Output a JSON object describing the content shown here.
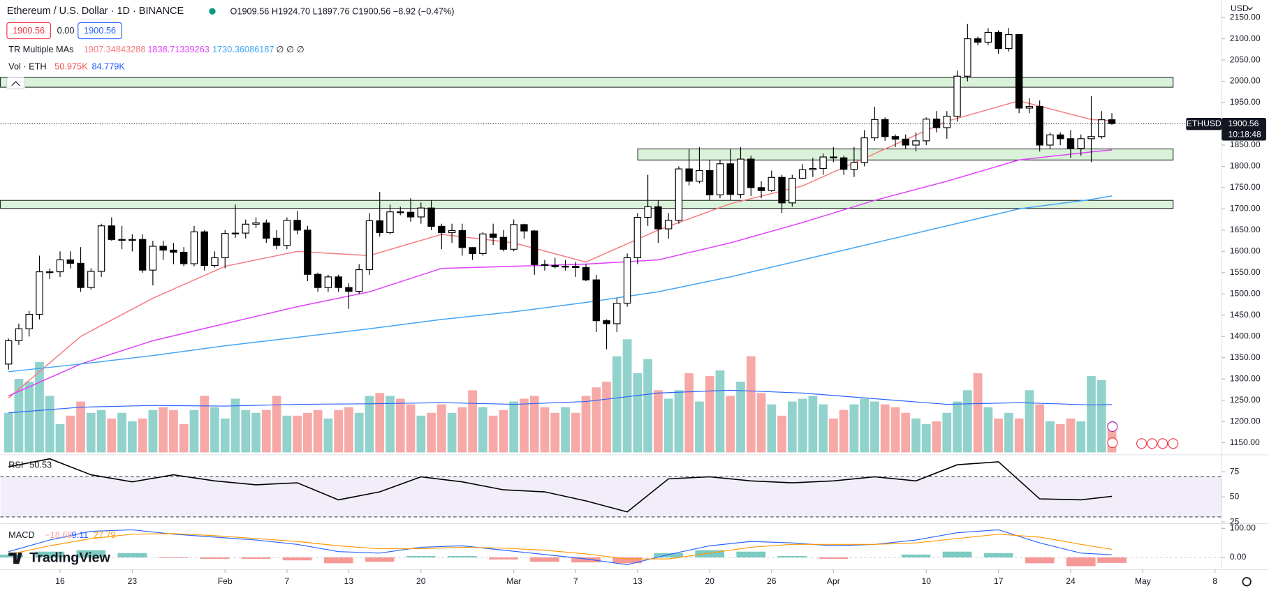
{
  "header": {
    "symbol": "Ethereum / U.S. Dollar · 1D · BINANCE",
    "ohlc": "O1909.56 H1924.70 L1897.76 C1900.56 −8.92 (−0.47%)",
    "sell": "1900.56",
    "spread": "0.00",
    "buy": "1900.56"
  },
  "legend": {
    "ma_title": "TR Multiple MAs",
    "ma_values": [
      "1907.34843288",
      "1838.71339263",
      "1730.36086187"
    ],
    "ma_extra": "∅ ∅ ∅",
    "vol_title": "Vol · ETH",
    "vol_values": [
      "50.975K",
      "84.779K"
    ],
    "rsi_title": "RSI",
    "rsi_value": "50.53",
    "macd_title": "MACD",
    "macd_values": [
      "−18.68",
      "9.11",
      "27.79"
    ]
  },
  "price_tag": {
    "symbol": "ETHUSD",
    "price": "1900.56",
    "countdown": "10:18:48"
  },
  "currency": "USD",
  "brand": "TradingView",
  "chart_data": {
    "type": "candlestick",
    "candles": [
      [
        1335,
        1395,
        1322,
        1390
      ],
      [
        1390,
        1430,
        1380,
        1418
      ],
      [
        1418,
        1460,
        1400,
        1452
      ],
      [
        1452,
        1590,
        1440,
        1552
      ],
      [
        1552,
        1560,
        1535,
        1552
      ],
      [
        1552,
        1600,
        1540,
        1580
      ],
      [
        1580,
        1600,
        1560,
        1572
      ],
      [
        1572,
        1610,
        1505,
        1515
      ],
      [
        1515,
        1560,
        1510,
        1553
      ],
      [
        1553,
        1665,
        1540,
        1660
      ],
      [
        1660,
        1680,
        1625,
        1628
      ],
      [
        1628,
        1660,
        1605,
        1628
      ],
      [
        1628,
        1640,
        1600,
        1628
      ],
      [
        1628,
        1640,
        1550,
        1556
      ],
      [
        1556,
        1625,
        1520,
        1612
      ],
      [
        1612,
        1625,
        1580,
        1603
      ],
      [
        1603,
        1620,
        1570,
        1598
      ],
      [
        1598,
        1610,
        1565,
        1571
      ],
      [
        1571,
        1660,
        1565,
        1646
      ],
      [
        1646,
        1650,
        1555,
        1567
      ],
      [
        1567,
        1600,
        1562,
        1585
      ],
      [
        1585,
        1650,
        1560,
        1642
      ],
      [
        1642,
        1710,
        1632,
        1643
      ],
      [
        1643,
        1675,
        1630,
        1664
      ],
      [
        1664,
        1680,
        1655,
        1667
      ],
      [
        1667,
        1675,
        1620,
        1631
      ],
      [
        1631,
        1650,
        1605,
        1614
      ],
      [
        1614,
        1680,
        1605,
        1673
      ],
      [
        1673,
        1695,
        1640,
        1650
      ],
      [
        1650,
        1660,
        1530,
        1546
      ],
      [
        1546,
        1550,
        1505,
        1515
      ],
      [
        1515,
        1545,
        1505,
        1540
      ],
      [
        1540,
        1545,
        1505,
        1515
      ],
      [
        1515,
        1525,
        1465,
        1506
      ],
      [
        1506,
        1570,
        1500,
        1557
      ],
      [
        1557,
        1690,
        1545,
        1672
      ],
      [
        1672,
        1740,
        1635,
        1644
      ],
      [
        1644,
        1710,
        1640,
        1693
      ],
      [
        1693,
        1705,
        1685,
        1692
      ],
      [
        1692,
        1725,
        1670,
        1681
      ],
      [
        1681,
        1715,
        1665,
        1702
      ],
      [
        1702,
        1720,
        1650,
        1659
      ],
      [
        1659,
        1665,
        1605,
        1644
      ],
      [
        1644,
        1665,
        1620,
        1649
      ],
      [
        1649,
        1665,
        1590,
        1609
      ],
      [
        1609,
        1610,
        1580,
        1595
      ],
      [
        1595,
        1645,
        1590,
        1641
      ],
      [
        1641,
        1665,
        1615,
        1633
      ],
      [
        1633,
        1650,
        1600,
        1605
      ],
      [
        1605,
        1675,
        1600,
        1663
      ],
      [
        1663,
        1665,
        1630,
        1648
      ],
      [
        1648,
        1650,
        1545,
        1569
      ],
      [
        1569,
        1580,
        1555,
        1567
      ],
      [
        1567,
        1585,
        1560,
        1564
      ],
      [
        1564,
        1580,
        1555,
        1565
      ],
      [
        1565,
        1575,
        1540,
        1562
      ],
      [
        1562,
        1570,
        1530,
        1533
      ],
      [
        1533,
        1545,
        1410,
        1437
      ],
      [
        1437,
        1440,
        1370,
        1430
      ],
      [
        1430,
        1490,
        1410,
        1478
      ],
      [
        1478,
        1595,
        1470,
        1585
      ],
      [
        1585,
        1690,
        1570,
        1680
      ],
      [
        1680,
        1780,
        1660,
        1705
      ],
      [
        1705,
        1720,
        1620,
        1653
      ],
      [
        1653,
        1690,
        1630,
        1673
      ],
      [
        1673,
        1800,
        1665,
        1794
      ],
      [
        1794,
        1840,
        1755,
        1765
      ],
      [
        1765,
        1845,
        1760,
        1790
      ],
      [
        1790,
        1815,
        1720,
        1733
      ],
      [
        1733,
        1815,
        1725,
        1806
      ],
      [
        1806,
        1840,
        1720,
        1734
      ],
      [
        1734,
        1845,
        1725,
        1817
      ],
      [
        1817,
        1825,
        1730,
        1750
      ],
      [
        1750,
        1765,
        1725,
        1743
      ],
      [
        1743,
        1790,
        1740,
        1774
      ],
      [
        1774,
        1780,
        1690,
        1714
      ],
      [
        1714,
        1780,
        1705,
        1772
      ],
      [
        1772,
        1805,
        1770,
        1792
      ],
      [
        1792,
        1820,
        1775,
        1795
      ],
      [
        1795,
        1830,
        1780,
        1822
      ],
      [
        1822,
        1845,
        1810,
        1820
      ],
      [
        1820,
        1825,
        1780,
        1793
      ],
      [
        1793,
        1845,
        1775,
        1809
      ],
      [
        1809,
        1885,
        1800,
        1867
      ],
      [
        1867,
        1940,
        1860,
        1910
      ],
      [
        1910,
        1915,
        1860,
        1870
      ],
      [
        1870,
        1875,
        1845,
        1864
      ],
      [
        1864,
        1875,
        1840,
        1850
      ],
      [
        1850,
        1880,
        1835,
        1860
      ],
      [
        1860,
        1915,
        1850,
        1911
      ],
      [
        1911,
        1930,
        1880,
        1891
      ],
      [
        1891,
        1930,
        1865,
        1918
      ],
      [
        1918,
        2025,
        1905,
        2012
      ],
      [
        2012,
        2135,
        2000,
        2100
      ],
      [
        2100,
        2105,
        2085,
        2092
      ],
      [
        2092,
        2125,
        2085,
        2115
      ],
      [
        2115,
        2120,
        2065,
        2077
      ],
      [
        2077,
        2125,
        2070,
        2110
      ],
      [
        2110,
        2110,
        1925,
        1937
      ],
      [
        1937,
        1960,
        1925,
        1941
      ],
      [
        1941,
        1955,
        1835,
        1850
      ],
      [
        1850,
        1880,
        1840,
        1874
      ],
      [
        1874,
        1880,
        1850,
        1865
      ],
      [
        1865,
        1885,
        1820,
        1842
      ],
      [
        1842,
        1875,
        1825,
        1865
      ],
      [
        1865,
        1965,
        1810,
        1870
      ],
      [
        1870,
        1930,
        1865,
        1909.56
      ],
      [
        1909.56,
        1924.7,
        1897.76,
        1900.56
      ]
    ],
    "volumes": [
      70,
      130,
      125,
      160,
      100,
      50,
      65,
      90,
      70,
      75,
      60,
      70,
      55,
      60,
      75,
      80,
      75,
      50,
      75,
      100,
      80,
      60,
      95,
      75,
      70,
      75,
      100,
      65,
      65,
      70,
      75,
      60,
      75,
      80,
      70,
      100,
      105,
      100,
      95,
      85,
      65,
      70,
      85,
      70,
      80,
      110,
      80,
      65,
      75,
      90,
      95,
      100,
      80,
      70,
      80,
      70,
      100,
      115,
      125,
      170,
      200,
      140,
      165,
      110,
      95,
      110,
      140,
      90,
      135,
      145,
      100,
      125,
      170,
      105,
      85,
      65,
      90,
      95,
      100,
      85,
      60,
      75,
      85,
      95,
      90,
      85,
      80,
      70,
      60,
      50,
      55,
      70,
      90,
      110,
      140,
      80,
      60,
      70,
      60,
      110,
      85,
      55,
      50,
      60,
      55,
      135,
      128,
      50.975
    ],
    "volume_ma": {
      "color": "#2962ff",
      "x": [
        0,
        7,
        14,
        21,
        28,
        35,
        42,
        49,
        56,
        63,
        70,
        77,
        84,
        91,
        98,
        105,
        107
      ],
      "values": [
        70,
        80,
        83,
        82,
        85,
        86,
        88,
        85,
        90,
        105,
        110,
        105,
        95,
        85,
        88,
        84,
        84.779
      ]
    },
    "up_color": "#ffffff",
    "down_color": "#000000",
    "volume_up_color": "#26a69a",
    "volume_down_color": "#ef5350",
    "ma_lines": [
      {
        "color": "#f77c80",
        "x": [
          0,
          7,
          14,
          21,
          28,
          35,
          42,
          49,
          56,
          63,
          70,
          77,
          84,
          91,
          98,
          105,
          107
        ],
        "values": [
          1255,
          1400,
          1490,
          1565,
          1600,
          1590,
          1640,
          1620,
          1575,
          1650,
          1712,
          1754,
          1830,
          1906,
          1954,
          1910,
          1907.35
        ]
      },
      {
        "color": "#e040fb",
        "x": [
          0,
          7,
          14,
          21,
          28,
          35,
          42,
          49,
          56,
          63,
          70,
          77,
          84,
          91,
          98,
          105,
          107
        ],
        "values": [
          1260,
          1335,
          1390,
          1430,
          1470,
          1505,
          1560,
          1565,
          1570,
          1580,
          1620,
          1668,
          1720,
          1765,
          1815,
          1834,
          1838.71
        ]
      },
      {
        "color": "#42a5f5",
        "x": [
          0,
          7,
          14,
          21,
          28,
          35,
          42,
          49,
          56,
          63,
          70,
          77,
          84,
          91,
          98,
          105,
          107
        ],
        "values": [
          1317,
          1335,
          1355,
          1378,
          1398,
          1418,
          1440,
          1458,
          1480,
          1505,
          1540,
          1580,
          1620,
          1660,
          1700,
          1722,
          1730.36
        ]
      }
    ],
    "zones": [
      {
        "low": 1986,
        "high": 2009
      },
      {
        "low": 1815,
        "high": 1841
      },
      {
        "low": 1701,
        "high": 1720
      }
    ],
    "zone_color": "#d9f2d9",
    "ylim": [
      1121.5,
      2191.2
    ],
    "yticks": [
      {
        "value": 1150,
        "label": "1150.00"
      },
      {
        "value": 1200,
        "label": "1200.00"
      },
      {
        "value": 1250,
        "label": "1250.00"
      },
      {
        "value": 1300,
        "label": "1300.00"
      },
      {
        "value": 1350,
        "label": "1350.00"
      },
      {
        "value": 1400,
        "label": "1400.00"
      },
      {
        "value": 1450,
        "label": "1450.00"
      },
      {
        "value": 1500,
        "label": "1500.00"
      },
      {
        "value": 1550,
        "label": "1550.00"
      },
      {
        "value": 1600,
        "label": "1600.00"
      },
      {
        "value": 1650,
        "label": "1650.00"
      },
      {
        "value": 1700,
        "label": "1700.00"
      },
      {
        "value": 1750,
        "label": "1750.00"
      },
      {
        "value": 1800,
        "label": "1800.00"
      },
      {
        "value": 1850,
        "label": "1850.00"
      },
      {
        "value": 1900,
        "label": "1900.00"
      },
      {
        "value": 1950,
        "label": "1950.00"
      },
      {
        "value": 2000,
        "label": "2000.00"
      },
      {
        "value": 2050,
        "label": "2050.00"
      },
      {
        "value": 2100,
        "label": "2100.00"
      },
      {
        "value": 2150,
        "label": "2150.00"
      }
    ],
    "xticks": [
      {
        "value": 5,
        "label": "16"
      },
      {
        "value": 12,
        "label": "23"
      },
      {
        "value": 21,
        "label": "Feb"
      },
      {
        "value": 27,
        "label": "7"
      },
      {
        "value": 33,
        "label": "13"
      },
      {
        "value": 40,
        "label": "20"
      },
      {
        "value": 49,
        "label": "Mar"
      },
      {
        "value": 55,
        "label": "7"
      },
      {
        "value": 61,
        "label": "13"
      },
      {
        "value": 68,
        "label": "20"
      },
      {
        "value": 74,
        "label": "26"
      },
      {
        "value": 80,
        "label": "Apr"
      },
      {
        "value": 89,
        "label": "10"
      },
      {
        "value": 96,
        "label": "17"
      },
      {
        "value": 103,
        "label": "24"
      },
      {
        "value": 110,
        "label": "May"
      },
      {
        "value": 117,
        "label": "8"
      }
    ],
    "rsi": {
      "color": "#000000",
      "x": [
        0,
        4,
        8,
        12,
        16,
        20,
        24,
        28,
        32,
        36,
        40,
        44,
        48,
        52,
        56,
        60,
        64,
        68,
        72,
        76,
        80,
        84,
        88,
        92,
        96,
        100,
        104,
        107
      ],
      "values": [
        80,
        88,
        72,
        65,
        72,
        66,
        62,
        64,
        47,
        55,
        70,
        65,
        57,
        55,
        46,
        35,
        68,
        70,
        66,
        64,
        66,
        70,
        66,
        82,
        85,
        48,
        47,
        50.53
      ],
      "ylim": [
        23.4,
        88.7
      ],
      "yticks": [
        25,
        50,
        75
      ],
      "band": [
        30,
        70
      ]
    },
    "macd": {
      "x": [
        0,
        4,
        8,
        12,
        16,
        20,
        24,
        28,
        32,
        36,
        40,
        44,
        48,
        52,
        56,
        60,
        64,
        68,
        72,
        76,
        80,
        84,
        88,
        92,
        96,
        100,
        104,
        107
      ],
      "macd": [
        20,
        60,
        90,
        95,
        80,
        70,
        60,
        45,
        20,
        15,
        35,
        40,
        25,
        10,
        -5,
        -25,
        10,
        40,
        55,
        50,
        40,
        45,
        60,
        85,
        95,
        50,
        15,
        9.11
      ],
      "signal": [
        10,
        40,
        65,
        80,
        82,
        75,
        65,
        55,
        40,
        30,
        30,
        35,
        32,
        25,
        12,
        -5,
        -5,
        15,
        35,
        45,
        45,
        45,
        50,
        65,
        80,
        70,
        45,
        27.79
      ],
      "histogram": [
        10,
        20,
        25,
        15,
        -2,
        -5,
        -5,
        -10,
        -20,
        -15,
        5,
        5,
        -7,
        -15,
        -17,
        -20,
        15,
        25,
        20,
        5,
        -5,
        0,
        10,
        20,
        15,
        -20,
        -30,
        -18.68
      ],
      "macd_color": "#2962ff",
      "signal_color": "#ff9800",
      "ylim": [
        -41.7,
        116.7
      ],
      "yticks": [
        {
          "value": 0,
          "label": "0.00"
        },
        {
          "value": 100,
          "label": "100.00"
        }
      ]
    }
  }
}
